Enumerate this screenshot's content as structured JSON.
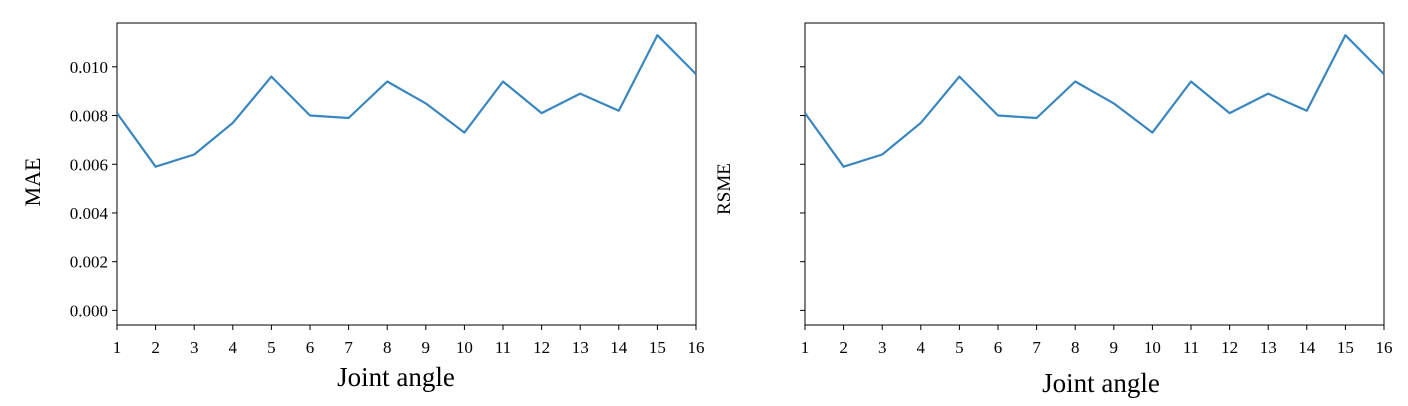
{
  "chart_data": [
    {
      "type": "line",
      "title": "",
      "xlabel": "Joint angle",
      "ylabel": "MAE",
      "x": [
        1,
        2,
        3,
        4,
        5,
        6,
        7,
        8,
        9,
        10,
        11,
        12,
        13,
        14,
        15,
        16
      ],
      "xticks": [
        "1",
        "2",
        "3",
        "4",
        "5",
        "6",
        "7",
        "8",
        "9",
        "10",
        "11",
        "12",
        "13",
        "14",
        "15",
        "16"
      ],
      "yticks": [
        "0.000",
        "0.002",
        "0.004",
        "0.006",
        "0.008",
        "0.010"
      ],
      "ylim": [
        -0.0006,
        0.0118
      ],
      "grid": false,
      "line_color": "#3a87bf",
      "series": [
        {
          "values": [
            0.0081,
            0.0059,
            0.0064,
            0.0077,
            0.0096,
            0.008,
            0.0079,
            0.0094,
            0.0085,
            0.0073,
            0.0094,
            0.0081,
            0.0089,
            0.0082,
            0.0113,
            0.0097
          ]
        }
      ]
    },
    {
      "type": "line",
      "title": "",
      "xlabel": "Joint angle",
      "ylabel": "RSME",
      "x": [
        1,
        2,
        3,
        4,
        5,
        6,
        7,
        8,
        9,
        10,
        11,
        12,
        13,
        14,
        15,
        16
      ],
      "xticks": [
        "1",
        "2",
        "3",
        "4",
        "5",
        "6",
        "7",
        "8",
        "9",
        "10",
        "11",
        "12",
        "13",
        "14",
        "15",
        "16"
      ],
      "yticks": [],
      "ylim": [
        -0.0006,
        0.0118
      ],
      "shared_y": true,
      "grid": false,
      "line_color": "#3a87bf",
      "series": [
        {
          "values": [
            0.0081,
            0.0059,
            0.0064,
            0.0077,
            0.0096,
            0.008,
            0.0079,
            0.0094,
            0.0085,
            0.0073,
            0.0094,
            0.0081,
            0.0089,
            0.0082,
            0.0113,
            0.0097
          ]
        }
      ]
    }
  ]
}
